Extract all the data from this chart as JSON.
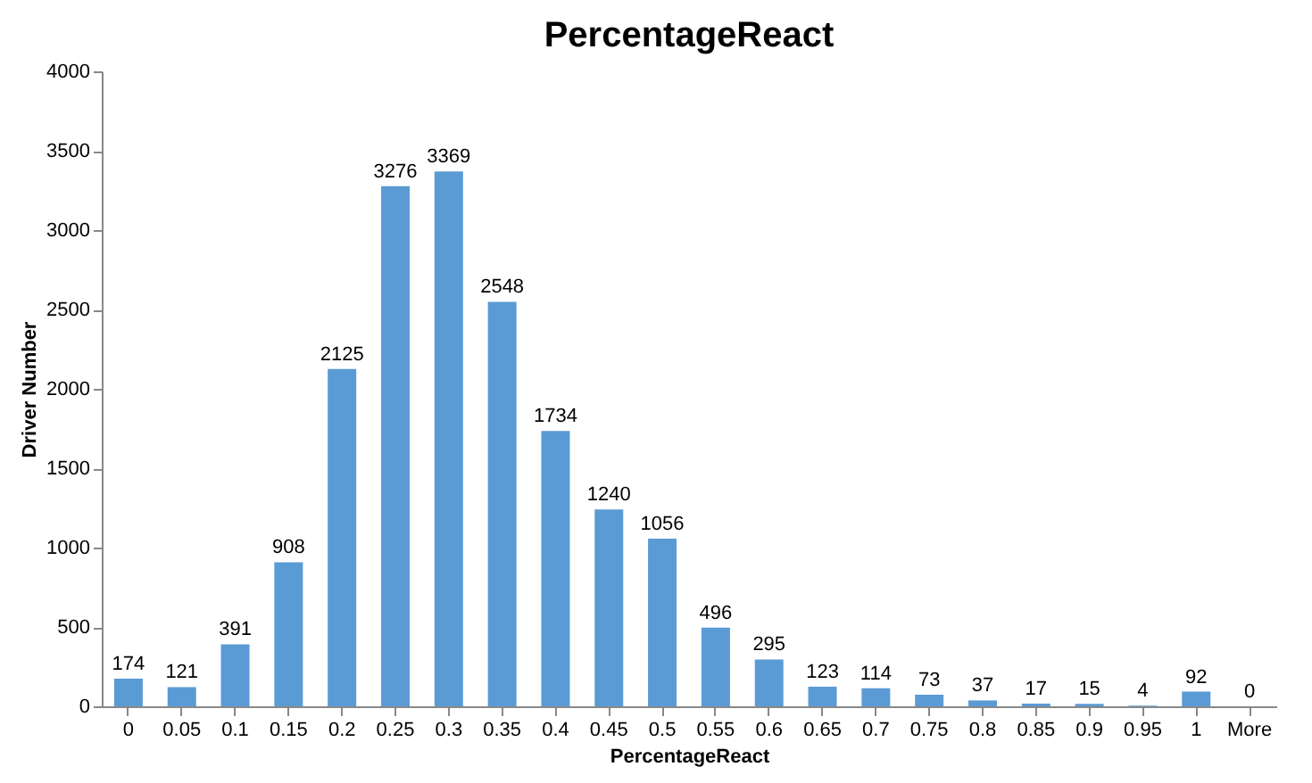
{
  "chart_data": {
    "type": "bar",
    "title": "PercentageReact",
    "xlabel": "PercentageReact",
    "ylabel": "Driver Number",
    "categories": [
      "0",
      "0.05",
      "0.1",
      "0.15",
      "0.2",
      "0.25",
      "0.3",
      "0.35",
      "0.4",
      "0.45",
      "0.5",
      "0.55",
      "0.6",
      "0.65",
      "0.7",
      "0.75",
      "0.8",
      "0.85",
      "0.9",
      "0.95",
      "1",
      "More"
    ],
    "values": [
      174,
      121,
      391,
      908,
      2125,
      3276,
      3369,
      2548,
      1734,
      1240,
      1056,
      496,
      295,
      123,
      114,
      73,
      37,
      17,
      15,
      4,
      92,
      0
    ],
    "color": "#5b9bd5",
    "ylim": [
      0,
      4000
    ],
    "yticks": [
      0,
      500,
      1000,
      1500,
      2000,
      2500,
      3000,
      3500,
      4000
    ],
    "grid": false,
    "data_labels": true
  }
}
